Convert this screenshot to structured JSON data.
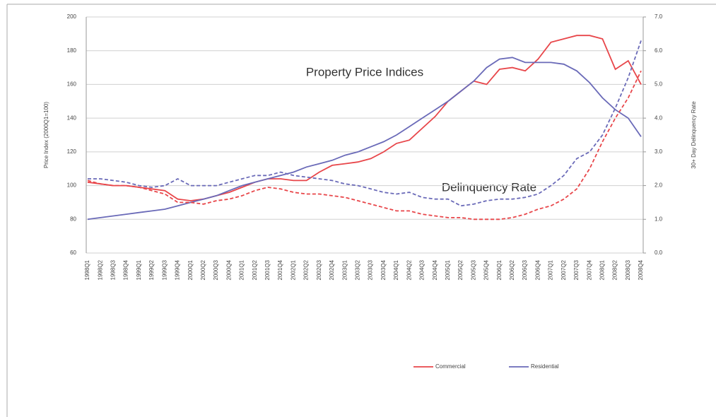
{
  "chart_data": {
    "type": "line",
    "annotations": [
      "Property Price Indices",
      "Delinquency Rate"
    ],
    "ylabel": "Price Index (2000Q1=100)",
    "y2label": "30+ Day Delinquency Rate",
    "categories": [
      "1998Q1",
      "1998Q2",
      "1998Q3",
      "1998Q4",
      "1999Q1",
      "1999Q2",
      "1999Q3",
      "1999Q4",
      "2000Q1",
      "2000Q2",
      "2000Q3",
      "2000Q4",
      "2001Q1",
      "2001Q2",
      "2001Q3",
      "2001Q4",
      "2002Q1",
      "2002Q2",
      "2002Q3",
      "2002Q4",
      "2003Q1",
      "2003Q2",
      "2003Q3",
      "2003Q4",
      "2004Q1",
      "2004Q2",
      "2004Q3",
      "2004Q4",
      "2005Q1",
      "2005Q2",
      "2005Q3",
      "2005Q4",
      "2006Q1",
      "2006Q2",
      "2006Q3",
      "2006Q4",
      "2007Q1",
      "2007Q2",
      "2007Q3",
      "2007Q4",
      "2008Q1",
      "2008Q2",
      "2008Q3",
      "2008Q4"
    ],
    "series": [
      {
        "name": "Commercial",
        "color": "#e8464a",
        "values": [
          102,
          101,
          100,
          100,
          99,
          98,
          97,
          92,
          91,
          92,
          94,
          96,
          99,
          102,
          104,
          104,
          103,
          103,
          108,
          112,
          113,
          114,
          116,
          120,
          125,
          127,
          134,
          141,
          150,
          156,
          162,
          160,
          169,
          170,
          168,
          175,
          185,
          187,
          189,
          189,
          187,
          169,
          174,
          160
        ]
      },
      {
        "name": "Residential",
        "color": "#6a6ab8",
        "values": [
          80,
          81,
          82,
          83,
          84,
          85,
          86,
          88,
          90,
          92,
          94,
          97,
          100,
          102,
          104,
          106,
          108,
          111,
          113,
          115,
          118,
          120,
          123,
          126,
          130,
          135,
          140,
          145,
          150,
          156,
          162,
          170,
          175,
          176,
          173,
          173,
          173,
          172,
          168,
          161,
          152,
          145,
          140,
          129
        ]
      },
      {
        "color": "#e8464a",
        "axis": "y2",
        "dash": true,
        "values": [
          2.15,
          2.05,
          2.0,
          2.0,
          1.95,
          1.85,
          1.75,
          1.5,
          1.5,
          1.45,
          1.55,
          1.6,
          1.7,
          1.85,
          1.95,
          1.9,
          1.8,
          1.75,
          1.75,
          1.7,
          1.65,
          1.55,
          1.45,
          1.35,
          1.25,
          1.25,
          1.15,
          1.1,
          1.05,
          1.05,
          1.0,
          1.0,
          1.0,
          1.05,
          1.15,
          1.3,
          1.4,
          1.6,
          1.9,
          2.5,
          3.3,
          4.0,
          4.6,
          5.4
        ]
      },
      {
        "color": "#6a6ab8",
        "axis": "y2",
        "dash": true,
        "values": [
          2.2,
          2.2,
          2.15,
          2.1,
          2.0,
          1.95,
          2.0,
          2.2,
          2.0,
          2.0,
          2.0,
          2.1,
          2.2,
          2.3,
          2.3,
          2.4,
          2.3,
          2.25,
          2.2,
          2.15,
          2.05,
          2.0,
          1.9,
          1.8,
          1.75,
          1.8,
          1.65,
          1.6,
          1.6,
          1.4,
          1.45,
          1.55,
          1.6,
          1.6,
          1.65,
          1.75,
          2.0,
          2.3,
          2.8,
          3.0,
          3.5,
          4.3,
          5.2,
          6.3
        ]
      }
    ],
    "ylim": [
      60,
      200
    ],
    "yticks": [
      60,
      80,
      100,
      120,
      140,
      160,
      180,
      200
    ],
    "y2lim": [
      0,
      7
    ],
    "y2ticks": [
      {
        "value": 0,
        "label": "0.0"
      },
      {
        "value": 1,
        "label": "1.0"
      },
      {
        "value": 2,
        "label": "2.0"
      },
      {
        "value": 3,
        "label": "3.0"
      },
      {
        "value": 4,
        "label": "4.0"
      },
      {
        "value": 5,
        "label": "5.0"
      },
      {
        "value": 6,
        "label": "6.0"
      },
      {
        "value": 7,
        "label": "7.0"
      }
    ],
    "grid": true,
    "legend": "bottom"
  }
}
